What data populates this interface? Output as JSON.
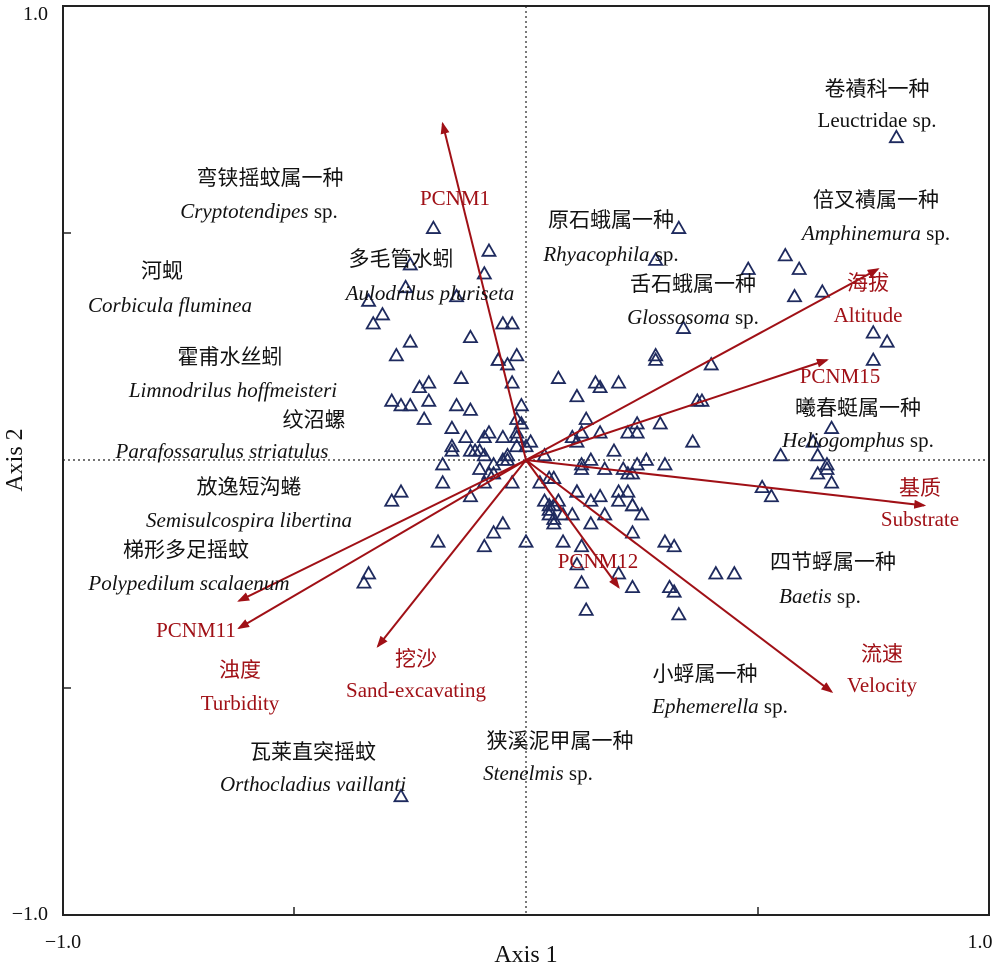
{
  "chart_data": {
    "type": "scatter",
    "xlabel": "Axis 1",
    "ylabel": "Axis 2",
    "xlim": [
      -1.0,
      1.0
    ],
    "ylim": [
      -1.0,
      1.0
    ],
    "ticks": {
      "x": [
        {
          "value": -1.0,
          "label": "−1.0"
        },
        {
          "value": 1.0,
          "label": "1.0"
        }
      ],
      "y": [
        {
          "value": 1.0,
          "label": "1.0"
        },
        {
          "value": -1.0,
          "label": "−1.0"
        }
      ],
      "minor": [
        -0.5,
        0.5
      ]
    },
    "grid": "dotted zero lines",
    "colors": {
      "vector": "#a01016",
      "site": "#1e2a5e",
      "axes": "#222222"
    },
    "points_marker": "open triangle",
    "points": [
      [
        0.62,
        0.04
      ],
      [
        0.12,
        -0.01
      ],
      [
        -0.2,
        0.51
      ],
      [
        -0.25,
        0.43
      ],
      [
        -0.31,
        0.32
      ],
      [
        -0.33,
        0.3
      ],
      [
        -0.25,
        0.12
      ],
      [
        -0.03,
        0.3
      ],
      [
        -0.26,
        0.38
      ],
      [
        -0.21,
        0.17
      ],
      [
        -0.04,
        0.21
      ],
      [
        -0.06,
        0.22
      ],
      [
        -0.05,
        0.05
      ],
      [
        0.04,
        0.01
      ],
      [
        -0.07,
        -0.01
      ],
      [
        -0.02,
        0.05
      ],
      [
        -0.04,
        0.01
      ],
      [
        -0.09,
        0.05
      ],
      [
        -0.03,
        -0.05
      ],
      [
        -0.06,
        0.22
      ],
      [
        -0.04,
        0.0
      ],
      [
        -0.1,
        -0.02
      ],
      [
        -0.19,
        -0.18
      ],
      [
        -0.29,
        -0.09
      ],
      [
        -0.22,
        0.09
      ],
      [
        -0.12,
        0.27
      ],
      [
        -0.09,
        0.41
      ],
      [
        -0.16,
        0.03
      ],
      [
        -0.34,
        0.35
      ],
      [
        -0.23,
        0.16
      ],
      [
        -0.08,
        0.46
      ],
      [
        0.32,
        -0.29
      ],
      [
        0.07,
        0.18
      ],
      [
        -0.12,
        0.11
      ],
      [
        -0.16,
        0.07
      ],
      [
        0.28,
        0.44
      ],
      [
        -0.07,
        -0.03
      ],
      [
        -0.09,
        -0.05
      ],
      [
        0.06,
        -0.04
      ],
      [
        -0.03,
        0.17
      ],
      [
        0.3,
        -0.01
      ],
      [
        0.45,
        -0.25
      ],
      [
        0.59,
        0.42
      ],
      [
        -0.09,
        -0.19
      ],
      [
        0.12,
        -0.02
      ],
      [
        0.06,
        -0.14
      ],
      [
        0.1,
        -0.12
      ],
      [
        0.11,
        -0.07
      ],
      [
        0.06,
        -0.1
      ],
      [
        0.36,
        0.04
      ],
      [
        0.17,
        -0.02
      ],
      [
        0.01,
        0.04
      ],
      [
        -0.28,
        0.23
      ],
      [
        -0.09,
        0.01
      ],
      [
        -0.13,
        0.05
      ],
      [
        -0.18,
        -0.05
      ],
      [
        0.2,
        -0.07
      ],
      [
        0.22,
        -0.03
      ],
      [
        -0.05,
        0.0
      ],
      [
        -0.02,
        0.09
      ],
      [
        0.63,
        -0.03
      ],
      [
        -0.15,
        0.36
      ],
      [
        0.64,
        0.37
      ],
      [
        -0.27,
        -0.07
      ],
      [
        -0.18,
        -0.01
      ],
      [
        0.23,
        -0.16
      ],
      [
        0.0,
        -0.18
      ],
      [
        0.15,
        0.17
      ],
      [
        -0.29,
        0.13
      ],
      [
        0.12,
        -0.19
      ],
      [
        -0.02,
        0.23
      ],
      [
        -0.35,
        -0.27
      ],
      [
        0.34,
        0.29
      ],
      [
        -0.05,
        0.3
      ],
      [
        0.07,
        -0.09
      ],
      [
        0.17,
        -0.12
      ],
      [
        0.25,
        -0.12
      ],
      [
        0.08,
        -0.18
      ],
      [
        0.23,
        -0.28
      ],
      [
        0.11,
        -0.23
      ],
      [
        0.63,
        0.01
      ],
      [
        0.8,
        0.71
      ],
      [
        -0.34,
        -0.25
      ],
      [
        0.24,
        -0.01
      ],
      [
        -0.25,
        0.26
      ],
      [
        -0.27,
        0.12
      ],
      [
        0.28,
        0.23
      ],
      [
        0.23,
        -0.1
      ],
      [
        0.14,
        0.0
      ],
      [
        0.22,
        0.06
      ],
      [
        0.66,
        -0.05
      ],
      [
        0.19,
        0.02
      ],
      [
        0.21,
        -0.02
      ],
      [
        -0.11,
        0.02
      ],
      [
        -0.08,
        0.06
      ],
      [
        -0.12,
        0.02
      ],
      [
        0.29,
        0.08
      ],
      [
        0.26,
        0.0
      ],
      [
        -0.14,
        0.18
      ],
      [
        0.12,
        -0.27
      ],
      [
        0.2,
        -0.25
      ],
      [
        0.51,
        -0.06
      ],
      [
        0.24,
        0.08
      ],
      [
        -0.01,
        0.08
      ],
      [
        0.31,
        -0.28
      ],
      [
        0.65,
        -0.02
      ],
      [
        0.12,
        0.06
      ],
      [
        0.14,
        -0.09
      ],
      [
        -0.16,
        0.02
      ],
      [
        -0.05,
        -0.14
      ],
      [
        0.56,
        0.45
      ],
      [
        0.0,
        0.03
      ],
      [
        -0.1,
        0.02
      ],
      [
        0.03,
        -0.05
      ],
      [
        0.06,
        -0.13
      ],
      [
        0.1,
        0.05
      ],
      [
        0.05,
        -0.11
      ],
      [
        -0.27,
        -0.74
      ],
      [
        -0.21,
        0.13
      ],
      [
        0.04,
        -0.09
      ],
      [
        0.14,
        -0.14
      ],
      [
        0.2,
        -0.09
      ],
      [
        0.08,
        -0.12
      ],
      [
        0.11,
        -0.07
      ],
      [
        -0.12,
        -0.08
      ],
      [
        0.53,
        -0.08
      ],
      [
        0.66,
        0.07
      ],
      [
        0.05,
        -0.1
      ],
      [
        -0.01,
        0.12
      ],
      [
        -0.07,
        -0.16
      ],
      [
        0.13,
        0.09
      ],
      [
        -0.02,
        0.03
      ],
      [
        -0.08,
        -0.03
      ],
      [
        0.11,
        0.04
      ],
      [
        0.75,
        0.22
      ],
      [
        0.75,
        0.28
      ],
      [
        0.55,
        0.01
      ],
      [
        0.33,
        0.51
      ],
      [
        0.78,
        0.26
      ],
      [
        0.4,
        0.21
      ],
      [
        0.22,
        -0.07
      ],
      [
        0.13,
        -0.33
      ],
      [
        0.32,
        -0.19
      ],
      [
        0.33,
        -0.34
      ],
      [
        0.16,
        0.16
      ],
      [
        0.38,
        0.13
      ],
      [
        0.37,
        0.13
      ],
      [
        0.05,
        -0.12
      ],
      [
        0.16,
        0.06
      ],
      [
        -0.02,
        0.06
      ],
      [
        -0.15,
        0.12
      ],
      [
        0.23,
        -0.03
      ],
      [
        0.11,
        0.14
      ],
      [
        0.28,
        0.22
      ],
      [
        0.16,
        -0.08
      ],
      [
        0.2,
        0.17
      ],
      [
        0.41,
        -0.25
      ],
      [
        0.65,
        -0.01
      ],
      [
        0.05,
        -0.04
      ],
      [
        0.3,
        -0.18
      ],
      [
        0.24,
        0.06
      ],
      [
        0.58,
        0.36
      ],
      [
        0.48,
        0.42
      ],
      [
        0.23,
        -0.1
      ]
    ],
    "vectors": [
      {
        "name": "PCNM1",
        "name2": "",
        "x": -0.18,
        "y": 0.74
      },
      {
        "name": "海拔",
        "name2": "Altitude",
        "x": 0.76,
        "y": 0.42
      },
      {
        "name": "PCNM15",
        "name2": "",
        "x": 0.65,
        "y": 0.22
      },
      {
        "name": "基质",
        "name2": "Substrate",
        "x": 0.86,
        "y": -0.1
      },
      {
        "name": "流速",
        "name2": "Velocity",
        "x": 0.66,
        "y": -0.51
      },
      {
        "name": "PCNM12",
        "name2": "",
        "x": 0.2,
        "y": -0.28
      },
      {
        "name": "挖沙",
        "name2": "Sand-excavating",
        "x": -0.32,
        "y": -0.41
      },
      {
        "name": "PCNM11",
        "name2": "",
        "x": -0.62,
        "y": -0.31
      },
      {
        "name": "浊度",
        "name2": "Turbidity",
        "x": -0.62,
        "y": -0.37
      }
    ],
    "species": [
      {
        "zh": "卷襀科一种",
        "sci": "",
        "plain": "Leuctridae sp."
      },
      {
        "zh": "倍叉襀属一种",
        "sci": "Amphinemura",
        "plain": " sp."
      },
      {
        "zh": "原石蛾属一种",
        "sci": "Rhyacophila",
        "plain": " sp."
      },
      {
        "zh": "舌石蛾属一种",
        "sci": "Glossosoma",
        "plain": " sp."
      },
      {
        "zh": "曦春蜓属一种",
        "sci": "Heliogomphus",
        "plain": " sp."
      },
      {
        "zh": "四节蜉属一种",
        "sci": "Baetis",
        "plain": " sp."
      },
      {
        "zh": "小蜉属一种",
        "sci": "Ephemerella",
        "plain": " sp."
      },
      {
        "zh": "狭溪泥甲属一种",
        "sci": "Stenelmis",
        "plain": " sp."
      },
      {
        "zh": "瓦莱直突摇蚊",
        "sci": "Orthocladius vaillanti",
        "plain": ""
      },
      {
        "zh": "弯铗摇蚊属一种",
        "sci": "Cryptotendipes",
        "plain": " sp."
      },
      {
        "zh": "河蚬",
        "sci": "Corbicula fluminea",
        "plain": ""
      },
      {
        "zh": "多毛管水蚓",
        "sci": "Aulodrilus pluriseta",
        "plain": ""
      },
      {
        "zh": "霍甫水丝蚓",
        "sci": "Limnodrilus hoffmeisteri",
        "plain": ""
      },
      {
        "zh": "纹沼螺",
        "sci": "Parafossarulus striatulus",
        "plain": ""
      },
      {
        "zh": "放逸短沟蜷",
        "sci": "Semisulcospira libertina",
        "plain": ""
      },
      {
        "zh": "梯形多足摇蚊",
        "sci": "Polypedilum scalaenum",
        "plain": ""
      }
    ]
  }
}
